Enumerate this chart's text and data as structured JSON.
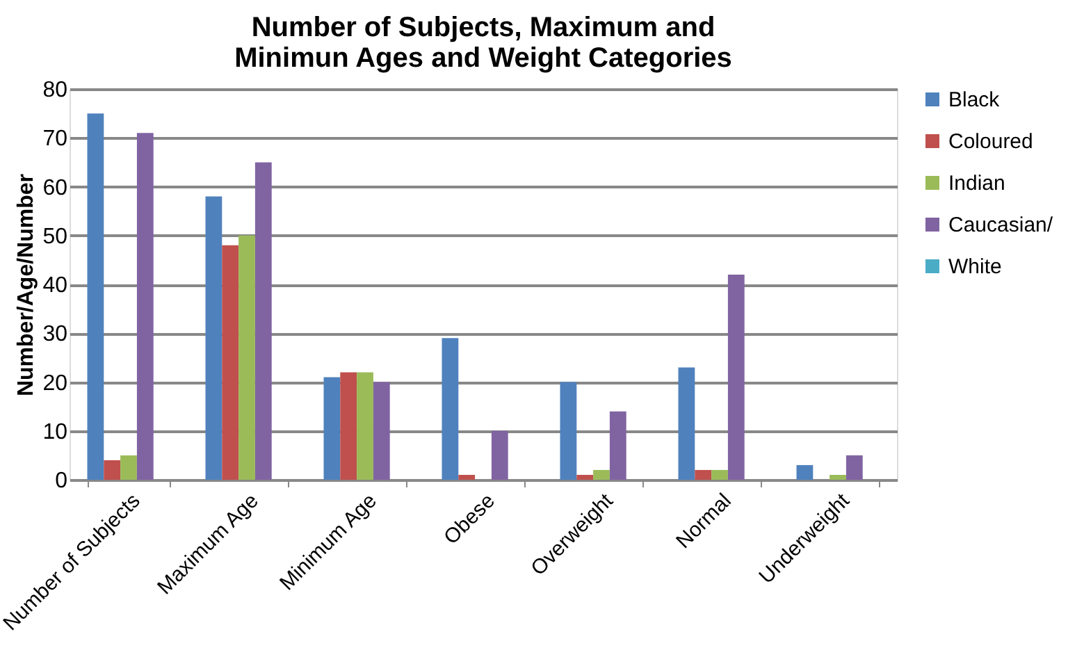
{
  "chart_data": {
    "type": "bar",
    "title": "Number of Subjects, Maximum and Minimun Ages and Weight Categories",
    "ylabel": "Number/Age/Number",
    "categories": [
      "Number of Subjects",
      "Maximum Age",
      "Minimum  Age",
      "Obese",
      "Overweight",
      "Normal",
      "Underweight"
    ],
    "series": [
      {
        "name": "Black",
        "color": "#4f81bd",
        "values": [
          75,
          58,
          21,
          29,
          20,
          23,
          3
        ]
      },
      {
        "name": "Coloured",
        "color": "#c0504d",
        "values": [
          4,
          48,
          22,
          1,
          1,
          2,
          0
        ]
      },
      {
        "name": "Indian",
        "color": "#9bbb59",
        "values": [
          5,
          50,
          22,
          0,
          2,
          2,
          1
        ]
      },
      {
        "name": "Caucasian/",
        "color": "#8064a2",
        "values": [
          71,
          65,
          20,
          10,
          14,
          42,
          5
        ]
      },
      {
        "name": "White",
        "color": "#4bacc6",
        "values": [
          null,
          null,
          null,
          null,
          null,
          null,
          null
        ]
      }
    ],
    "ylim": [
      0,
      80
    ],
    "yticks": [
      0,
      10,
      20,
      30,
      40,
      50,
      60,
      70,
      80
    ],
    "grid": "y",
    "legend": "right"
  }
}
